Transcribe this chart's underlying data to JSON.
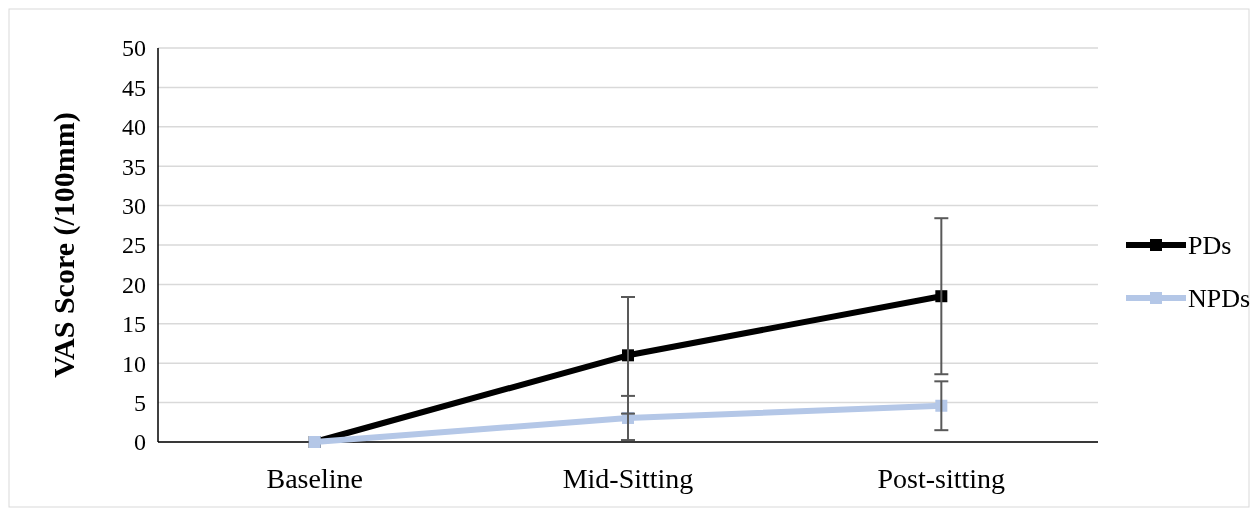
{
  "chart_data": {
    "type": "line",
    "ylabel": "VAS Score (/100mm)",
    "categories": [
      "Baseline",
      "Mid-Sitting",
      "Post-sitting"
    ],
    "series": [
      {
        "name": "PDs",
        "color": "#000000",
        "values": [
          0,
          11,
          18.5
        ],
        "errors": [
          null,
          7.4,
          9.9
        ]
      },
      {
        "name": "NPDs",
        "color": "#b4c7e7",
        "values": [
          0,
          3.05,
          4.6
        ],
        "errors": [
          null,
          2.8,
          3.1
        ]
      }
    ],
    "ylim": [
      0,
      50
    ],
    "yticks": [
      0,
      5,
      10,
      15,
      20,
      25,
      30,
      35,
      40,
      45,
      50
    ],
    "grid": "y",
    "legend": "right",
    "marker": "square",
    "line_style": "solid"
  }
}
